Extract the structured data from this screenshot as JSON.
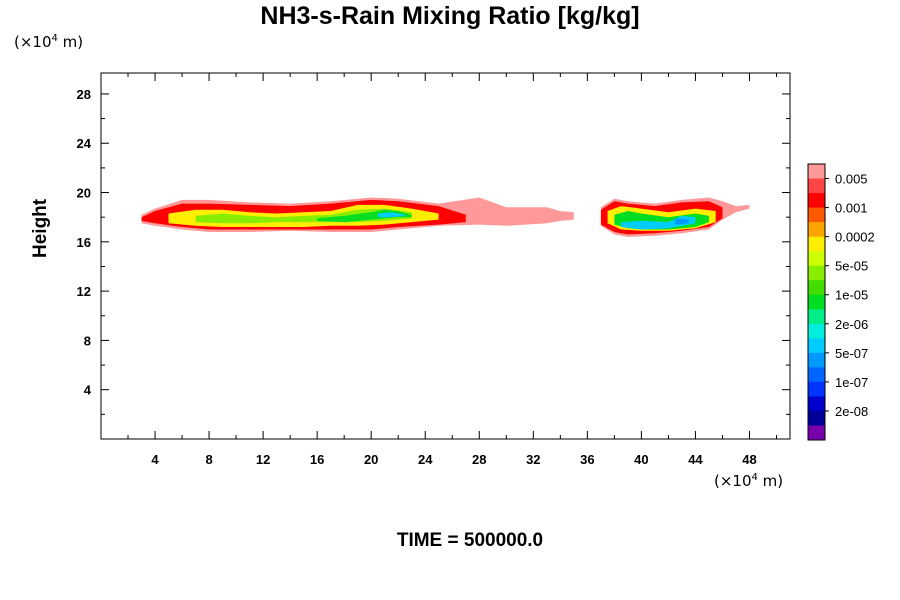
{
  "chart_data": {
    "type": "heatmap",
    "title": "NH3-s-Rain Mixing Ratio [kg/kg]",
    "ylabel": "Height",
    "xlabel": "",
    "x_unit": "m",
    "y_unit": "m",
    "unit_exponent": "4",
    "x_ticks": [
      "4",
      "8",
      "12",
      "16",
      "20",
      "24",
      "28",
      "32",
      "36",
      "40",
      "44",
      "48"
    ],
    "y_ticks": [
      "4",
      "8",
      "12",
      "16",
      "20",
      "24",
      "28"
    ],
    "xlim": [
      0,
      51
    ],
    "ylim": [
      0,
      29.7
    ],
    "footer": "TIME = 500000.0",
    "colorbar": {
      "labels": [
        "0.005",
        "0.001",
        "0.0002",
        "5e-05",
        "1e-05",
        "2e-06",
        "5e-07",
        "1e-07",
        "2e-08"
      ],
      "colors": [
        "#ff9999",
        "#ff4444",
        "#ff0000",
        "#ff5a00",
        "#ffa500",
        "#ffee00",
        "#ccff00",
        "#88ee00",
        "#44dd00",
        "#00dd22",
        "#00ee88",
        "#00eedd",
        "#00ccff",
        "#0099ff",
        "#0066ff",
        "#0033ff",
        "#0000cc",
        "#000099",
        "#7700aa"
      ]
    },
    "regions": [
      {
        "level": 18,
        "xs": [
          3,
          4,
          6,
          8,
          11,
          14,
          17,
          20,
          22,
          25,
          28,
          30,
          33,
          34,
          35
        ],
        "top": [
          18.2,
          18.7,
          19.4,
          19.4,
          19.2,
          19.1,
          19.3,
          19.6,
          19.5,
          19.1,
          19.6,
          18.8,
          18.8,
          18.5,
          18.4
        ],
        "bot": [
          17.5,
          17.3,
          17.0,
          16.8,
          16.8,
          16.9,
          16.8,
          16.8,
          17.0,
          17.3,
          17.4,
          17.3,
          17.5,
          17.7,
          17.8
        ]
      },
      {
        "level": 16,
        "xs": [
          3,
          4,
          6,
          8,
          11,
          14,
          17,
          20,
          22,
          25,
          27
        ],
        "top": [
          18.0,
          18.5,
          19.1,
          19.1,
          19.0,
          18.9,
          19.1,
          19.4,
          19.3,
          18.9,
          18.2
        ],
        "bot": [
          17.7,
          17.5,
          17.2,
          17.0,
          17.0,
          17.0,
          17.0,
          17.0,
          17.2,
          17.4,
          17.6
        ]
      },
      {
        "level": 13,
        "xs": [
          5,
          7,
          9,
          11,
          13,
          15,
          17,
          19,
          21,
          23,
          25
        ],
        "top": [
          18.3,
          18.6,
          18.6,
          18.4,
          18.3,
          18.4,
          18.5,
          19.0,
          19.0,
          18.7,
          18.3
        ],
        "bot": [
          17.5,
          17.3,
          17.2,
          17.2,
          17.2,
          17.2,
          17.3,
          17.3,
          17.4,
          17.6,
          17.8
        ]
      },
      {
        "level": 11,
        "xs": [
          7,
          9,
          11,
          13,
          15,
          17,
          19,
          21,
          23
        ],
        "top": [
          18.1,
          18.3,
          18.1,
          18.0,
          18.1,
          18.2,
          18.6,
          18.7,
          18.4
        ],
        "bot": [
          17.6,
          17.5,
          17.5,
          17.6,
          17.6,
          17.6,
          17.6,
          17.7,
          17.9
        ]
      },
      {
        "level": 9,
        "xs": [
          16,
          18,
          20,
          21,
          22,
          23
        ],
        "top": [
          17.9,
          18.1,
          18.4,
          18.6,
          18.5,
          18.2
        ],
        "bot": [
          17.7,
          17.6,
          17.8,
          17.9,
          18.0,
          18.0
        ]
      },
      {
        "level": 6,
        "xs": [
          20.5,
          21.5,
          22.5
        ],
        "top": [
          18.3,
          18.4,
          18.2
        ],
        "bot": [
          18.0,
          18.0,
          18.1
        ]
      },
      {
        "level": 18,
        "xs": [
          37,
          38,
          39,
          41,
          43,
          45,
          46,
          47,
          48
        ],
        "top": [
          18.8,
          19.5,
          19.3,
          19.1,
          19.4,
          19.6,
          19.3,
          18.9,
          19.0
        ],
        "bot": [
          17.3,
          16.6,
          16.4,
          16.5,
          16.7,
          17.0,
          17.8,
          18.4,
          18.7
        ]
      },
      {
        "level": 16,
        "xs": [
          37,
          38,
          39,
          41,
          43,
          45,
          46
        ],
        "top": [
          18.6,
          19.3,
          19.1,
          18.9,
          19.2,
          19.3,
          18.8
        ],
        "bot": [
          17.4,
          16.8,
          16.6,
          16.7,
          16.9,
          17.2,
          17.9
        ]
      },
      {
        "level": 13,
        "xs": [
          37.5,
          38.5,
          40,
          42,
          44,
          45.5
        ],
        "top": [
          18.5,
          18.9,
          18.7,
          18.4,
          18.7,
          18.5
        ],
        "bot": [
          17.5,
          17.0,
          16.9,
          16.9,
          17.1,
          17.6
        ]
      },
      {
        "level": 9,
        "xs": [
          38,
          39,
          40,
          42,
          44,
          45
        ],
        "top": [
          18.2,
          18.5,
          18.3,
          18.0,
          18.3,
          18.1
        ],
        "bot": [
          17.4,
          17.1,
          17.0,
          17.0,
          17.2,
          17.6
        ]
      },
      {
        "level": 6,
        "xs": [
          38.5,
          40,
          42,
          43,
          44
        ],
        "top": [
          17.6,
          17.7,
          17.6,
          18.1,
          18.0
        ],
        "bot": [
          17.2,
          17.0,
          17.1,
          17.3,
          17.5
        ]
      },
      {
        "level": 5,
        "xs": [
          42.5,
          43.5
        ],
        "top": [
          17.9,
          17.8
        ],
        "bot": [
          17.4,
          17.5
        ]
      }
    ]
  }
}
